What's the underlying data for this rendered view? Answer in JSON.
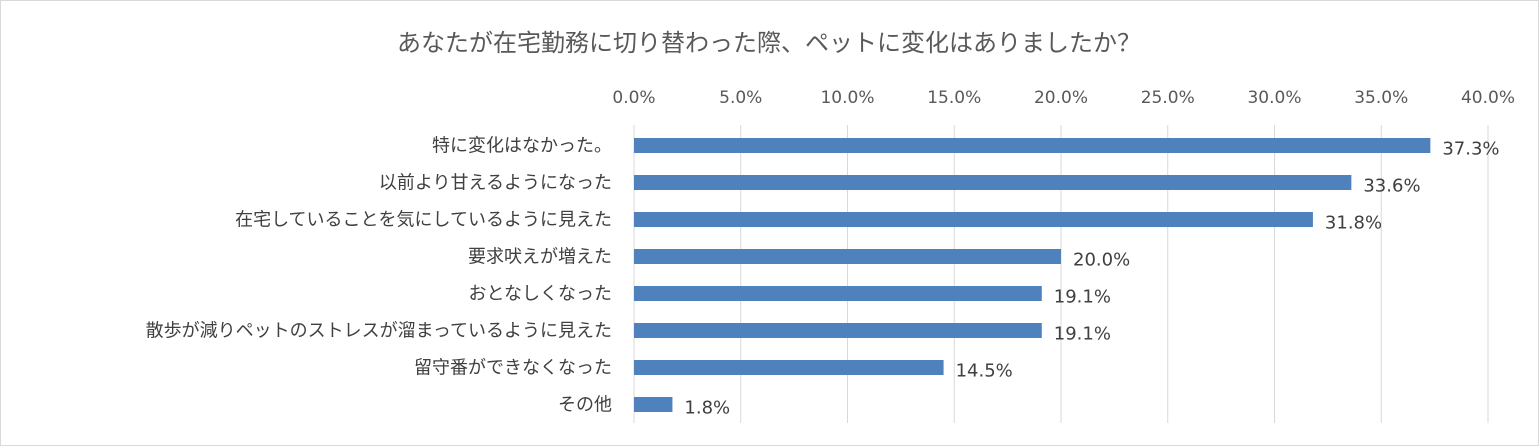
{
  "chart_data": {
    "type": "bar",
    "orientation": "horizontal",
    "title": "あなたが在宅勤務に切り替わった際、ペットに変化はありましたか？",
    "categories": [
      "特に変化はなかった。",
      "以前より甘えるようになった",
      "在宅していることを気にしているように見えた",
      "要求吠えが増えた",
      "おとなしくなった",
      "散歩が減りペットのストレスが溜まっているように見えた",
      "留守番ができなくなった",
      "その他"
    ],
    "values": [
      37.3,
      33.6,
      31.8,
      20.0,
      19.1,
      19.1,
      14.5,
      1.8
    ],
    "value_labels": [
      "37.3%",
      "33.6%",
      "31.8%",
      "20.0%",
      "19.1%",
      "19.1%",
      "14.5%",
      "1.8%"
    ],
    "xlim": [
      0,
      40
    ],
    "x_ticks": [
      0,
      5,
      10,
      15,
      20,
      25,
      30,
      35,
      40
    ],
    "x_tick_labels": [
      "0.0%",
      "5.0%",
      "10.0%",
      "15.0%",
      "20.0%",
      "25.0%",
      "30.0%",
      "35.0%",
      "40.0%"
    ],
    "x_axis_position": "top",
    "grid": true,
    "legend": "none",
    "bar_color": "#4f81bd",
    "grid_color": "#d9d9d9"
  }
}
